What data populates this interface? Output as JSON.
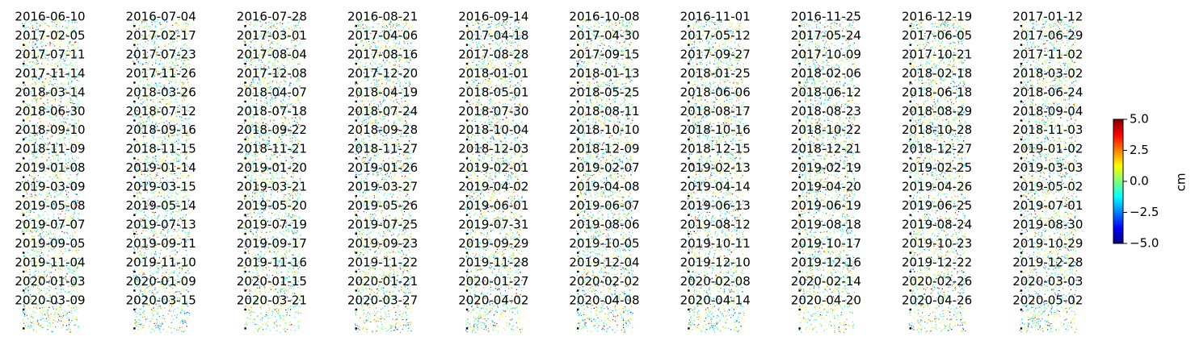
{
  "chart_data": {
    "type": "heatmap",
    "description_kind": "small-multiples displacement maps",
    "grid": false,
    "columns": 10,
    "dates": [
      "2016-06-10",
      "2016-07-04",
      "2016-07-28",
      "2016-08-21",
      "2016-09-14",
      "2016-10-08",
      "2016-11-01",
      "2016-11-25",
      "2016-12-19",
      "2017-01-12",
      "2017-02-05",
      "2017-02-17",
      "2017-03-01",
      "2017-04-06",
      "2017-04-18",
      "2017-04-30",
      "2017-05-12",
      "2017-05-24",
      "2017-06-05",
      "2017-06-29",
      "2017-07-11",
      "2017-07-23",
      "2017-08-04",
      "2017-08-16",
      "2017-08-28",
      "2017-09-15",
      "2017-09-27",
      "2017-10-09",
      "2017-10-21",
      "2017-11-02",
      "2017-11-14",
      "2017-11-26",
      "2017-12-08",
      "2017-12-20",
      "2018-01-01",
      "2018-01-13",
      "2018-01-25",
      "2018-02-06",
      "2018-02-18",
      "2018-03-02",
      "2018-03-14",
      "2018-03-26",
      "2018-04-07",
      "2018-04-19",
      "2018-05-01",
      "2018-05-25",
      "2018-06-06",
      "2018-06-12",
      "2018-06-18",
      "2018-06-24",
      "2018-06-30",
      "2018-07-12",
      "2018-07-18",
      "2018-07-24",
      "2018-07-30",
      "2018-08-11",
      "2018-08-17",
      "2018-08-23",
      "2018-08-29",
      "2018-09-04",
      "2018-09-10",
      "2018-09-16",
      "2018-09-22",
      "2018-09-28",
      "2018-10-04",
      "2018-10-10",
      "2018-10-16",
      "2018-10-22",
      "2018-10-28",
      "2018-11-03",
      "2018-11-09",
      "2018-11-15",
      "2018-11-21",
      "2018-11-27",
      "2018-12-03",
      "2018-12-09",
      "2018-12-15",
      "2018-12-21",
      "2018-12-27",
      "2019-01-02",
      "2019-01-08",
      "2019-01-14",
      "2019-01-20",
      "2019-01-26",
      "2019-02-01",
      "2019-02-07",
      "2019-02-13",
      "2019-02-19",
      "2019-02-25",
      "2019-03-03",
      "2019-03-09",
      "2019-03-15",
      "2019-03-21",
      "2019-03-27",
      "2019-04-02",
      "2019-04-08",
      "2019-04-14",
      "2019-04-20",
      "2019-04-26",
      "2019-05-02",
      "2019-05-08",
      "2019-05-14",
      "2019-05-20",
      "2019-05-26",
      "2019-06-01",
      "2019-06-07",
      "2019-06-13",
      "2019-06-19",
      "2019-06-25",
      "2019-07-01",
      "2019-07-07",
      "2019-07-13",
      "2019-07-19",
      "2019-07-25",
      "2019-07-31",
      "2019-08-06",
      "2019-08-12",
      "2019-08-18",
      "2019-08-24",
      "2019-08-30",
      "2019-09-05",
      "2019-09-11",
      "2019-09-17",
      "2019-09-23",
      "2019-09-29",
      "2019-10-05",
      "2019-10-11",
      "2019-10-17",
      "2019-10-23",
      "2019-10-29",
      "2019-11-04",
      "2019-11-10",
      "2019-11-16",
      "2019-11-22",
      "2019-11-28",
      "2019-12-04",
      "2019-12-10",
      "2019-12-16",
      "2019-12-22",
      "2019-12-28",
      "2020-01-03",
      "2020-01-09",
      "2020-01-15",
      "2020-01-21",
      "2020-01-27",
      "2020-02-02",
      "2020-02-08",
      "2020-02-14",
      "2020-02-26",
      "2020-03-03",
      "2020-03-09",
      "2020-03-15",
      "2020-03-21",
      "2020-03-27",
      "2020-04-02",
      "2020-04-08",
      "2020-04-14",
      "2020-04-20",
      "2020-04-26",
      "2020-05-02"
    ],
    "colorbar": {
      "colormap": "jet",
      "vmin": -5.0,
      "vmax": 5.0,
      "ticks": [
        "−5.0",
        "−2.5",
        "0.0",
        "2.5",
        "5.0"
      ],
      "tick_values": [
        -5.0,
        -2.5,
        0.0,
        2.5,
        5.0
      ],
      "label": "cm"
    },
    "colors": {
      "jet_stops": [
        "#00007f",
        "#0000ff",
        "#007fff",
        "#00ffff",
        "#7fff7f",
        "#ffff00",
        "#ff7f00",
        "#ff0000",
        "#7f0000"
      ]
    }
  }
}
